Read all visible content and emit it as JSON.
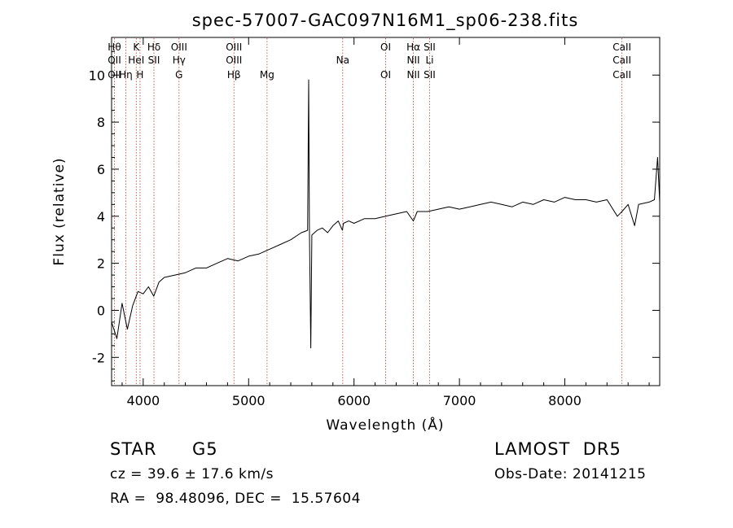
{
  "chart_data": {
    "type": "line",
    "title": "spec-57007-GAC097N16M1_sp06-238.fits",
    "xlabel": "Wavelength (Å)",
    "ylabel": "Flux (relative)",
    "xlim": [
      3700,
      8900
    ],
    "ylim": [
      -3.2,
      11.6
    ],
    "xticks": [
      4000,
      5000,
      6000,
      7000,
      8000
    ],
    "yticks": [
      -2,
      0,
      2,
      4,
      6,
      8,
      10
    ],
    "grid": false,
    "series": [
      {
        "x": [
          3700,
          3750,
          3800,
          3850,
          3900,
          3950,
          4000,
          4050,
          4100,
          4150,
          4200,
          4300,
          4400,
          4500,
          4600,
          4700,
          4800,
          4900,
          5000,
          5100,
          5200,
          5300,
          5400,
          5500,
          5560,
          5570,
          5577,
          5590,
          5600,
          5650,
          5700,
          5750,
          5800,
          5850,
          5890,
          5900,
          5950,
          6000,
          6100,
          6200,
          6300,
          6400,
          6500,
          6563,
          6600,
          6700,
          6800,
          6900,
          7000,
          7100,
          7200,
          7300,
          7400,
          7500,
          7600,
          7700,
          7800,
          7900,
          8000,
          8100,
          8200,
          8300,
          8400,
          8498,
          8542,
          8600,
          8662,
          8700,
          8800,
          8850,
          8880,
          8900
        ],
        "y": [
          -0.5,
          -1.2,
          0.3,
          -0.8,
          0.2,
          0.8,
          0.7,
          1.0,
          0.6,
          1.2,
          1.4,
          1.5,
          1.6,
          1.8,
          1.8,
          2.0,
          2.2,
          2.1,
          2.3,
          2.4,
          2.6,
          2.8,
          3.0,
          3.3,
          3.4,
          9.8,
          3.5,
          -1.6,
          3.2,
          3.4,
          3.5,
          3.3,
          3.6,
          3.8,
          3.4,
          3.7,
          3.8,
          3.7,
          3.9,
          3.9,
          4.0,
          4.1,
          4.2,
          3.8,
          4.2,
          4.2,
          4.3,
          4.4,
          4.3,
          4.4,
          4.5,
          4.6,
          4.5,
          4.4,
          4.6,
          4.5,
          4.7,
          4.6,
          4.8,
          4.7,
          4.7,
          4.6,
          4.7,
          4.0,
          4.2,
          4.5,
          3.6,
          4.5,
          4.6,
          4.7,
          6.5,
          4.6
        ]
      }
    ],
    "lines": [
      {
        "top": "Hθ",
        "mid": "OII",
        "low": "OII"
      },
      {
        "top": "",
        "mid": "",
        "low": "Hη"
      },
      {
        "top": "K",
        "mid": "HeI",
        "low": ""
      },
      {
        "top": "",
        "mid": "",
        "low": "H"
      },
      {
        "top": "Hδ",
        "mid": "SII",
        "low": ""
      },
      {
        "top": "OIII",
        "mid": "Hγ",
        "low": "G"
      },
      {
        "top": "OIII",
        "mid": "OIII",
        "low": "Hβ"
      },
      {
        "top": "",
        "mid": "",
        "low": "Mg"
      },
      {
        "top": "",
        "mid": "Na",
        "low": ""
      },
      {
        "top": "OI",
        "mid": "",
        "low": "OI"
      },
      {
        "top": "Hα",
        "mid": "NII",
        "low": "NII"
      },
      {
        "top": "SII",
        "mid": "Li",
        "low": "SII"
      },
      {
        "top": "CaII",
        "mid": "CaII",
        "low": "CaII"
      }
    ]
  },
  "info": {
    "object_class": "STAR",
    "subclass": "G5",
    "survey": "LAMOST  DR5",
    "velocity": "cz = 39.6 ± 17.6 km/s",
    "obs_date": "Obs-Date: 20141215",
    "coords": "RA =  98.48096, DEC =  15.57604"
  }
}
